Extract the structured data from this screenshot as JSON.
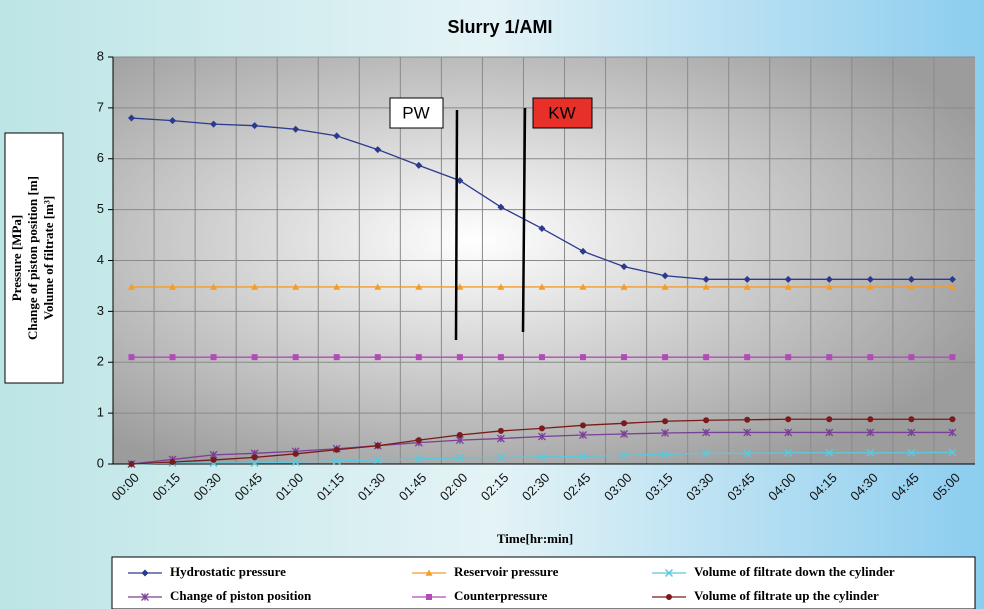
{
  "chart_data": {
    "type": "line",
    "title": "Slurry 1/AMI",
    "x_label": "Time[hr:min]",
    "y_label": [
      "Pressure [MPa]",
      "Change of piston position [m]",
      "Volume of filtrate [m³]"
    ],
    "annotations": [
      "PW",
      "KW"
    ],
    "categories": [
      "00:00",
      "00:15",
      "00:30",
      "00:45",
      "01:00",
      "01:15",
      "01:30",
      "01:45",
      "02:00",
      "02:15",
      "02:30",
      "02:45",
      "03:00",
      "03:15",
      "03:30",
      "03:45",
      "04:00",
      "04:15",
      "04:30",
      "04:45",
      "05:00"
    ],
    "ylim": [
      0,
      8
    ],
    "yticks": [
      0,
      1,
      2,
      3,
      4,
      5,
      6,
      7,
      8
    ],
    "grid": true,
    "legend": "bottom",
    "series": [
      {
        "name": "Hydrostatic pressure",
        "color": "#2b3a8c",
        "marker": "diamond",
        "values": [
          6.8,
          6.75,
          6.68,
          6.65,
          6.58,
          6.45,
          6.18,
          5.87,
          5.57,
          5.05,
          4.63,
          4.18,
          3.88,
          3.7,
          3.63,
          3.63,
          3.63,
          3.63,
          3.63,
          3.63,
          3.63
        ]
      },
      {
        "name": "Reservoir pressure",
        "color": "#f39c2a",
        "marker": "triangle",
        "values": [
          3.48,
          3.48,
          3.48,
          3.48,
          3.48,
          3.48,
          3.48,
          3.48,
          3.48,
          3.48,
          3.48,
          3.48,
          3.48,
          3.48,
          3.48,
          3.48,
          3.48,
          3.48,
          3.48,
          3.48,
          3.48
        ]
      },
      {
        "name": "Volume of filtrate down the cylinder",
        "color": "#5cc8dc",
        "marker": "x",
        "values": [
          0,
          0.02,
          0.02,
          0.02,
          0.04,
          0.06,
          0.08,
          0.1,
          0.12,
          0.13,
          0.14,
          0.15,
          0.17,
          0.19,
          0.21,
          0.21,
          0.22,
          0.22,
          0.22,
          0.22,
          0.23
        ]
      },
      {
        "name": "Change of piston position",
        "color": "#7a3f96",
        "marker": "star",
        "values": [
          0,
          0.09,
          0.18,
          0.21,
          0.25,
          0.3,
          0.36,
          0.42,
          0.47,
          0.5,
          0.54,
          0.57,
          0.59,
          0.61,
          0.62,
          0.62,
          0.62,
          0.62,
          0.62,
          0.62,
          0.62
        ]
      },
      {
        "name": "Counterpressure",
        "color": "#b04cb8",
        "marker": "square",
        "values": [
          2.1,
          2.1,
          2.1,
          2.1,
          2.1,
          2.1,
          2.1,
          2.1,
          2.1,
          2.1,
          2.1,
          2.1,
          2.1,
          2.1,
          2.1,
          2.1,
          2.1,
          2.1,
          2.1,
          2.1,
          2.1
        ]
      },
      {
        "name": "Volume of filtrate  up the cylinder",
        "color": "#7a1a1a",
        "marker": "circle",
        "values": [
          0,
          0.04,
          0.08,
          0.13,
          0.2,
          0.28,
          0.36,
          0.47,
          0.57,
          0.65,
          0.7,
          0.76,
          0.8,
          0.84,
          0.86,
          0.87,
          0.88,
          0.88,
          0.88,
          0.88,
          0.88
        ]
      }
    ]
  }
}
